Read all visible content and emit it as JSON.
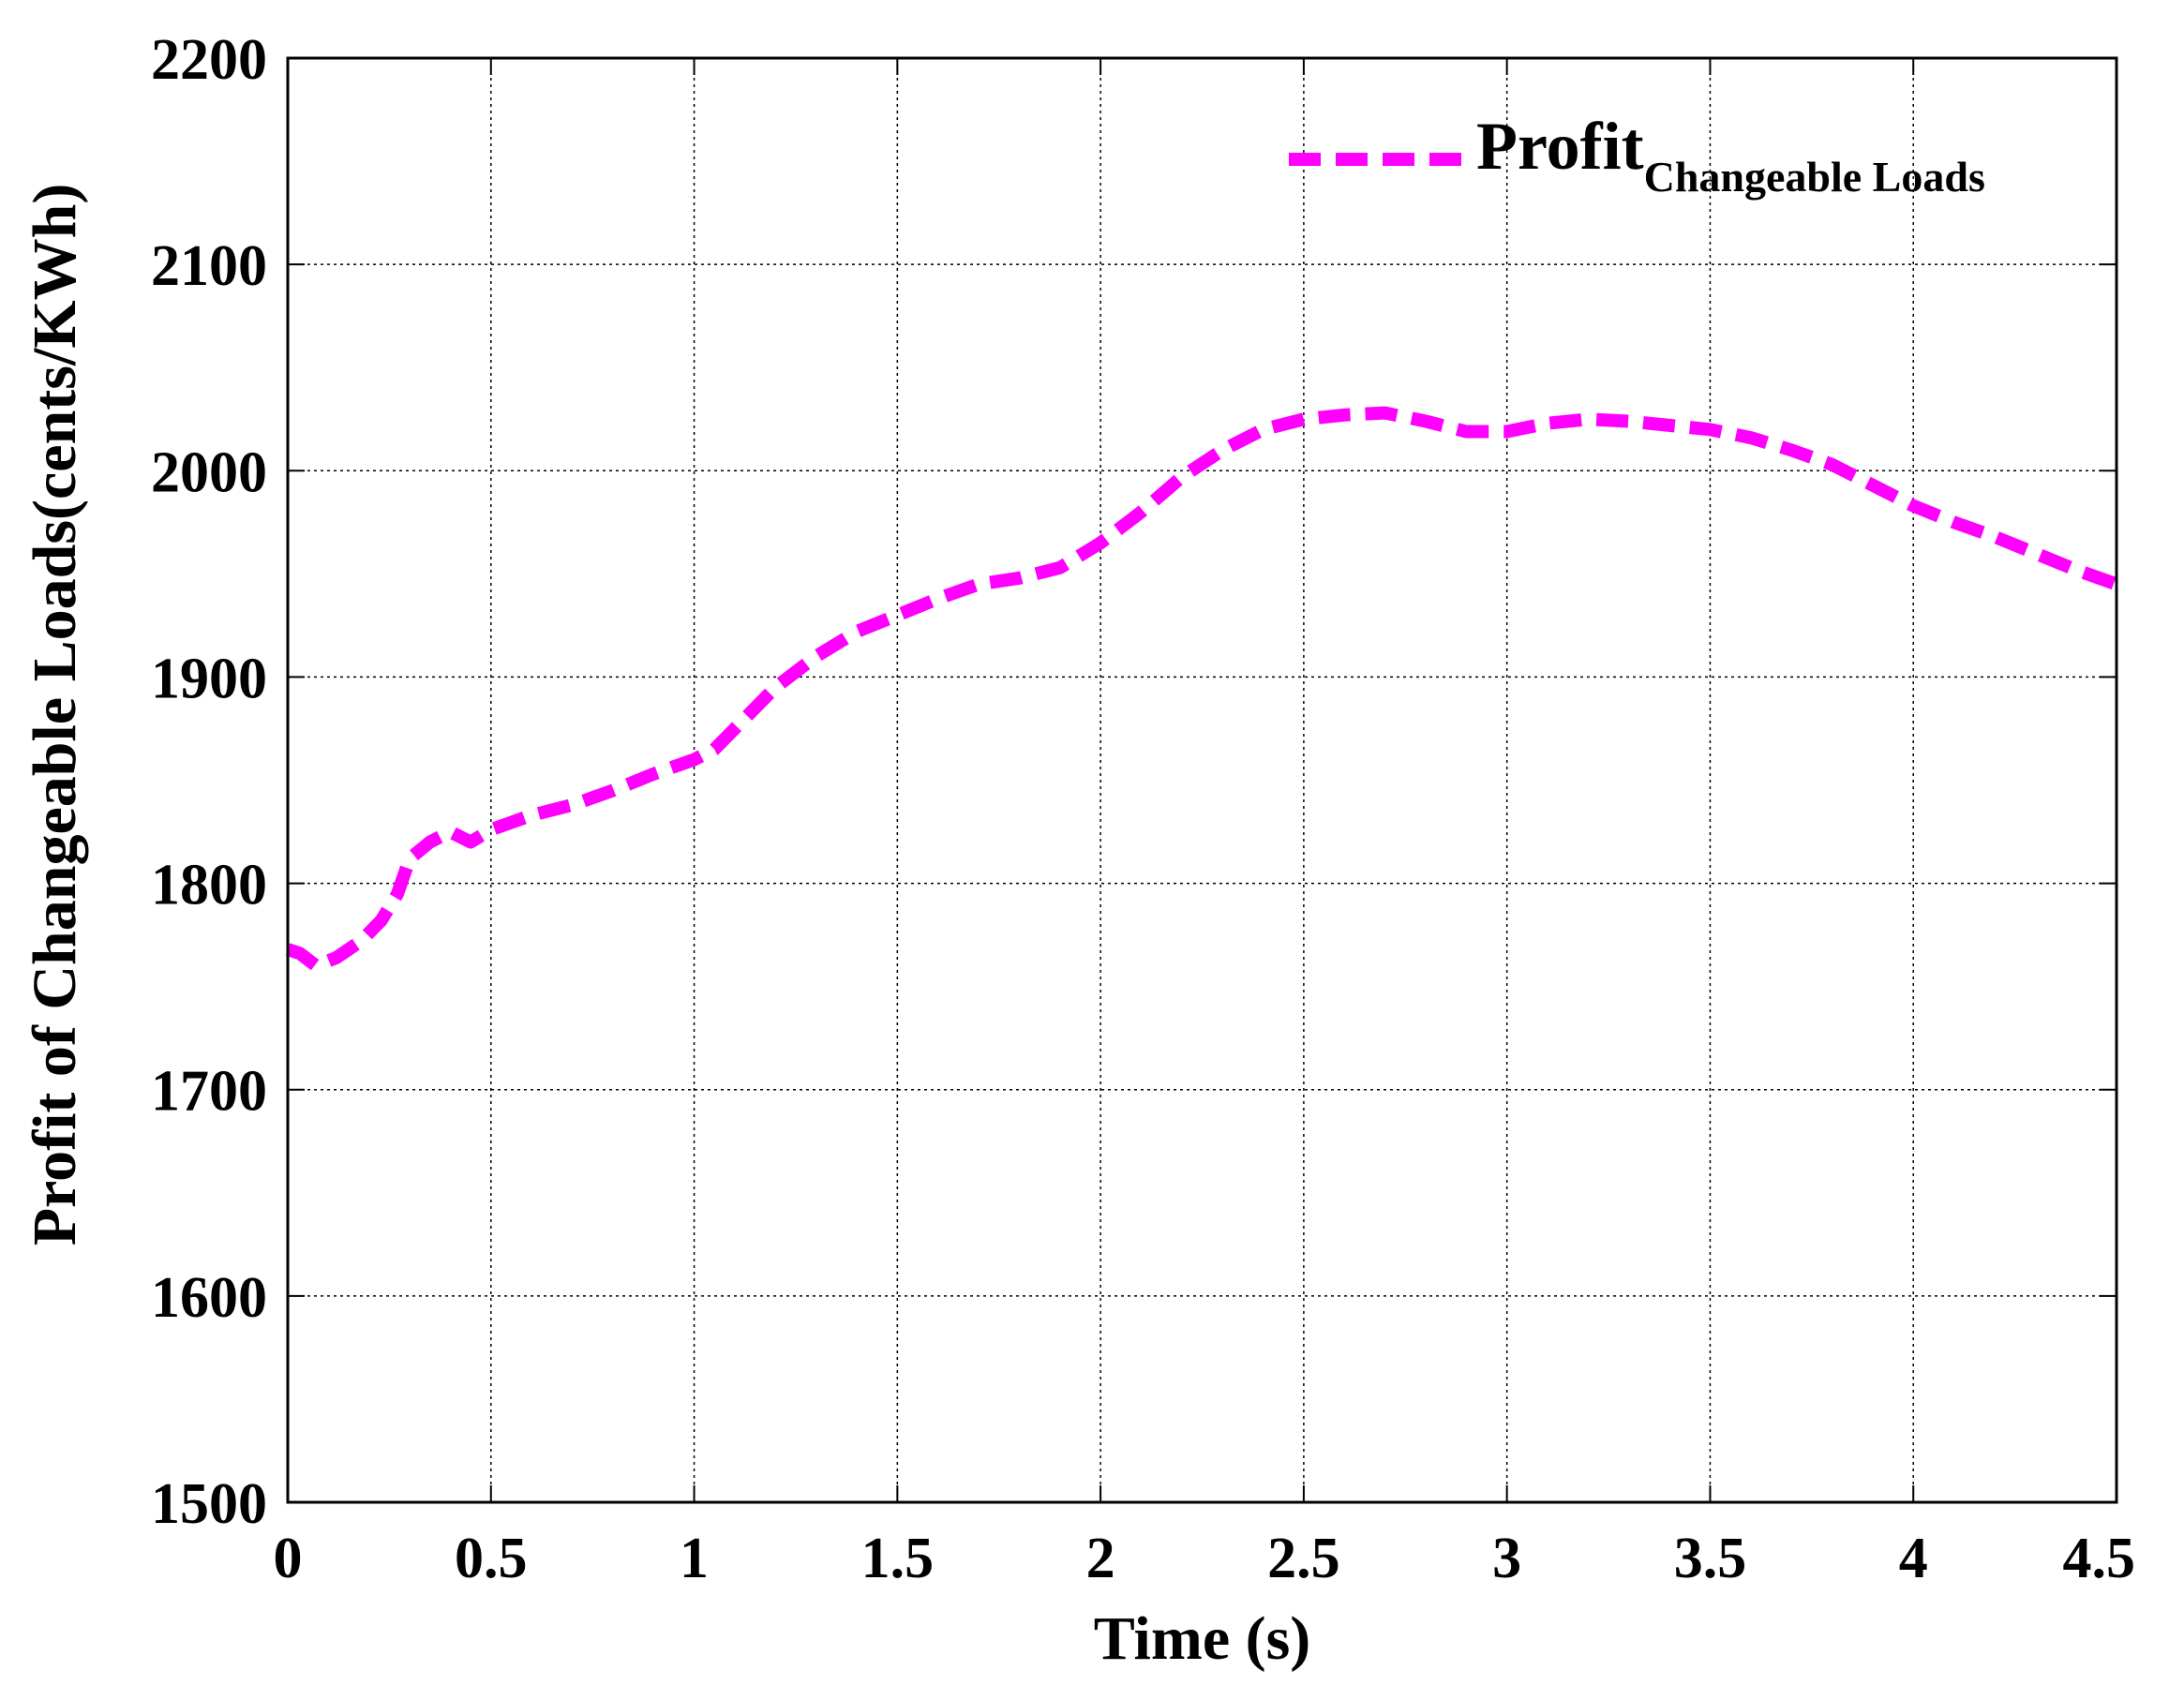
{
  "chart_data": {
    "type": "line",
    "xlabel": "Time (s)",
    "ylabel": "Profit of Changeable Loads(cents/KWh)",
    "xlim": [
      0,
      4.5
    ],
    "ylim": [
      1500,
      2200
    ],
    "x_ticks": [
      0,
      0.5,
      1,
      1.5,
      2,
      2.5,
      3,
      3.5,
      4,
      4.5
    ],
    "x_tick_labels": [
      "0",
      "0.5",
      "1",
      "1.5",
      "2",
      "2.5",
      "3",
      "3.5",
      "4",
      "4.5"
    ],
    "y_ticks": [
      1500,
      1600,
      1700,
      1800,
      1900,
      2000,
      2100,
      2200
    ],
    "y_tick_labels": [
      "1500",
      "1600",
      "1700",
      "1800",
      "1900",
      "2000",
      "2100",
      "2200"
    ],
    "grid": true,
    "legend": {
      "position": "top-right",
      "entries": [
        {
          "main": "Profit",
          "sub": "Changeable Loads"
        }
      ]
    },
    "series": [
      {
        "color": "#ff00ff",
        "style": "dashed",
        "x": [
          0,
          0.03,
          0.07,
          0.12,
          0.18,
          0.23,
          0.27,
          0.3,
          0.35,
          0.4,
          0.45,
          0.5,
          0.6,
          0.7,
          0.8,
          0.9,
          1.0,
          1.05,
          1.1,
          1.2,
          1.3,
          1.4,
          1.5,
          1.6,
          1.7,
          1.8,
          1.9,
          2.0,
          2.1,
          2.2,
          2.3,
          2.4,
          2.5,
          2.6,
          2.7,
          2.8,
          2.9,
          3.0,
          3.1,
          3.2,
          3.3,
          3.4,
          3.5,
          3.6,
          3.7,
          3.8,
          3.9,
          4.0,
          4.1,
          4.2,
          4.3,
          4.4,
          4.5
        ],
        "y": [
          1768,
          1766,
          1760,
          1764,
          1772,
          1782,
          1795,
          1812,
          1820,
          1825,
          1820,
          1826,
          1833,
          1838,
          1845,
          1853,
          1860,
          1865,
          1875,
          1895,
          1910,
          1922,
          1930,
          1938,
          1945,
          1948,
          1953,
          1965,
          1980,
          1997,
          2010,
          2020,
          2025,
          2027,
          2028,
          2024,
          2019,
          2019,
          2023,
          2025,
          2024,
          2022,
          2020,
          2016,
          2010,
          2003,
          1993,
          1983,
          1975,
          1968,
          1960,
          1952,
          1945
        ]
      }
    ]
  }
}
